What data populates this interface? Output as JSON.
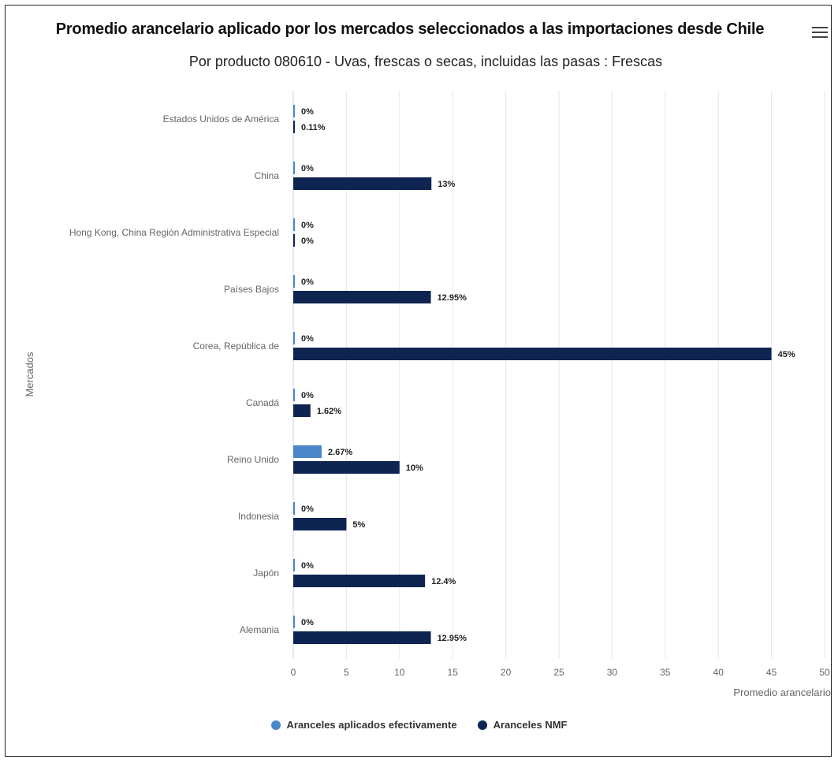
{
  "chart_data": {
    "type": "bar",
    "orientation": "horizontal",
    "title": "Promedio arancelario aplicado por los mercados seleccionados a las importaciones desde Chile",
    "subtitle": "Por producto 080610 - Uvas, frescas o secas, incluidas las pasas : Frescas",
    "xlabel": "Promedio arancelario",
    "ylabel": "Mercados",
    "xlim": [
      0,
      50
    ],
    "x_ticks": [
      0,
      5,
      10,
      15,
      20,
      25,
      30,
      35,
      40,
      45,
      50
    ],
    "grid": true,
    "legend_position": "bottom",
    "categories": [
      "Estados Unidos de América",
      "China",
      "Hong Kong, China Región Administrativa Especial",
      "Países Bajos",
      "Corea, República de",
      "Canadá",
      "Reino Unido",
      "Indonesia",
      "Japón",
      "Alemania"
    ],
    "series": [
      {
        "name": "Aranceles aplicados efectivamente",
        "color": "#4a86c8",
        "values": [
          0,
          0,
          0,
          0,
          0,
          0,
          2.67,
          0,
          0,
          0
        ],
        "labels": [
          "0%",
          "0%",
          "0%",
          "0%",
          "0%",
          "0%",
          "2.67%",
          "0%",
          "0%",
          "0%"
        ]
      },
      {
        "name": "Aranceles NMF",
        "color": "#0f2551",
        "values": [
          0.11,
          13,
          0,
          12.95,
          45,
          1.62,
          10,
          5,
          12.4,
          12.95
        ],
        "labels": [
          "0.11%",
          "13%",
          "0%",
          "12.95%",
          "45%",
          "1.62%",
          "10%",
          "5%",
          "12.4%",
          "12.95%"
        ]
      }
    ]
  },
  "menu_icon": "hamburger-menu-icon"
}
